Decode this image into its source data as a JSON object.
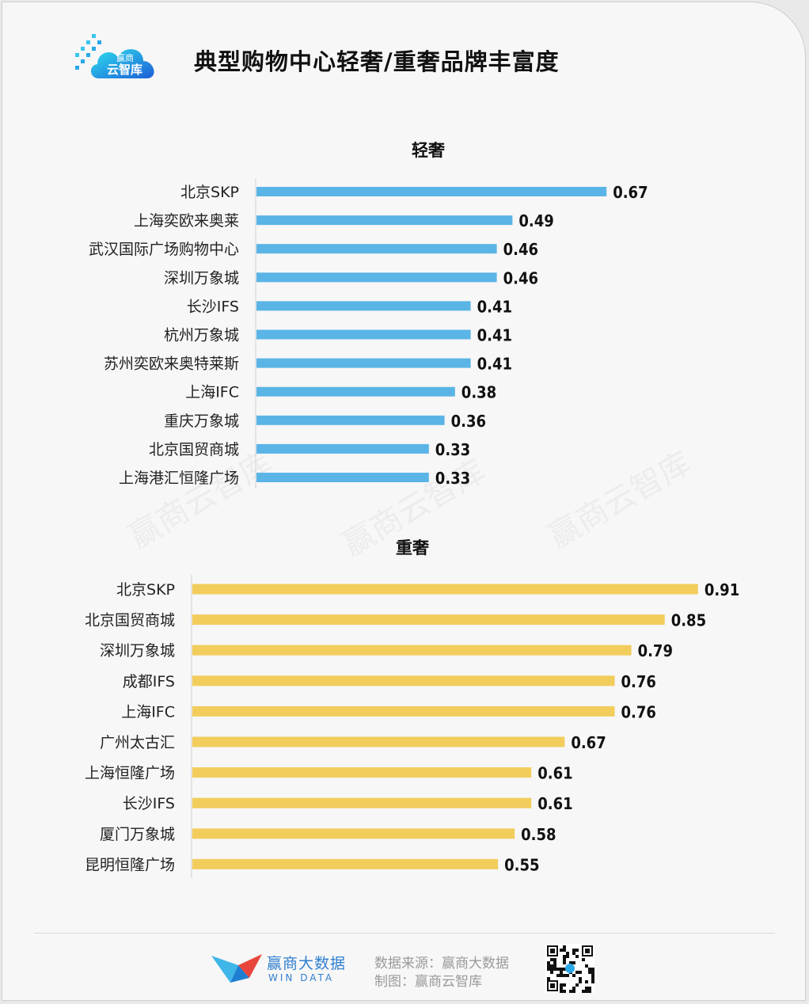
{
  "title": "典型购物中心轻奢/重奢品牌丰富度",
  "logo_text": {
    "line1": "赢商",
    "line2": "云智库"
  },
  "watermark_text": "赢商云智库",
  "chart_data": [
    {
      "type": "bar",
      "orientation": "horizontal",
      "title": "轻奢",
      "categories": [
        "北京SKP",
        "上海奕欧来奥莱",
        "武汉国际广场购物中心",
        "深圳万象城",
        "长沙IFS",
        "杭州万象城",
        "苏州奕欧来奥特莱斯",
        "上海IFC",
        "重庆万象城",
        "北京国贸商城",
        "上海港汇恒隆广场"
      ],
      "values": [
        0.67,
        0.49,
        0.46,
        0.46,
        0.41,
        0.41,
        0.41,
        0.38,
        0.36,
        0.33,
        0.33
      ],
      "value_labels": [
        "0.67",
        "0.49",
        "0.46",
        "0.46",
        "0.41",
        "0.41",
        "0.41",
        "0.38",
        "0.36",
        "0.33",
        "0.33"
      ],
      "color": "#5ab4e6",
      "xlim": [
        0,
        1
      ],
      "grid": false
    },
    {
      "type": "bar",
      "orientation": "horizontal",
      "title": "重奢",
      "categories": [
        "北京SKP",
        "北京国贸商城",
        "深圳万象城",
        "成都IFS",
        "上海IFC",
        "广州太古汇",
        "上海恒隆广场",
        "长沙IFS",
        "厦门万象城",
        "昆明恒隆广场"
      ],
      "values": [
        0.91,
        0.85,
        0.79,
        0.76,
        0.76,
        0.67,
        0.61,
        0.61,
        0.58,
        0.55
      ],
      "value_labels": [
        "0.91",
        "0.85",
        "0.79",
        "0.76",
        "0.76",
        "0.67",
        "0.61",
        "0.61",
        "0.58",
        "0.55"
      ],
      "color": "#f2cd5c",
      "xlim": [
        0,
        1
      ],
      "grid": false
    }
  ],
  "footer": {
    "brand_name": "赢商大数据",
    "brand_en": "WIN DATA",
    "source": "数据来源：赢商大数据",
    "made_by": "制图：赢商云智库"
  }
}
